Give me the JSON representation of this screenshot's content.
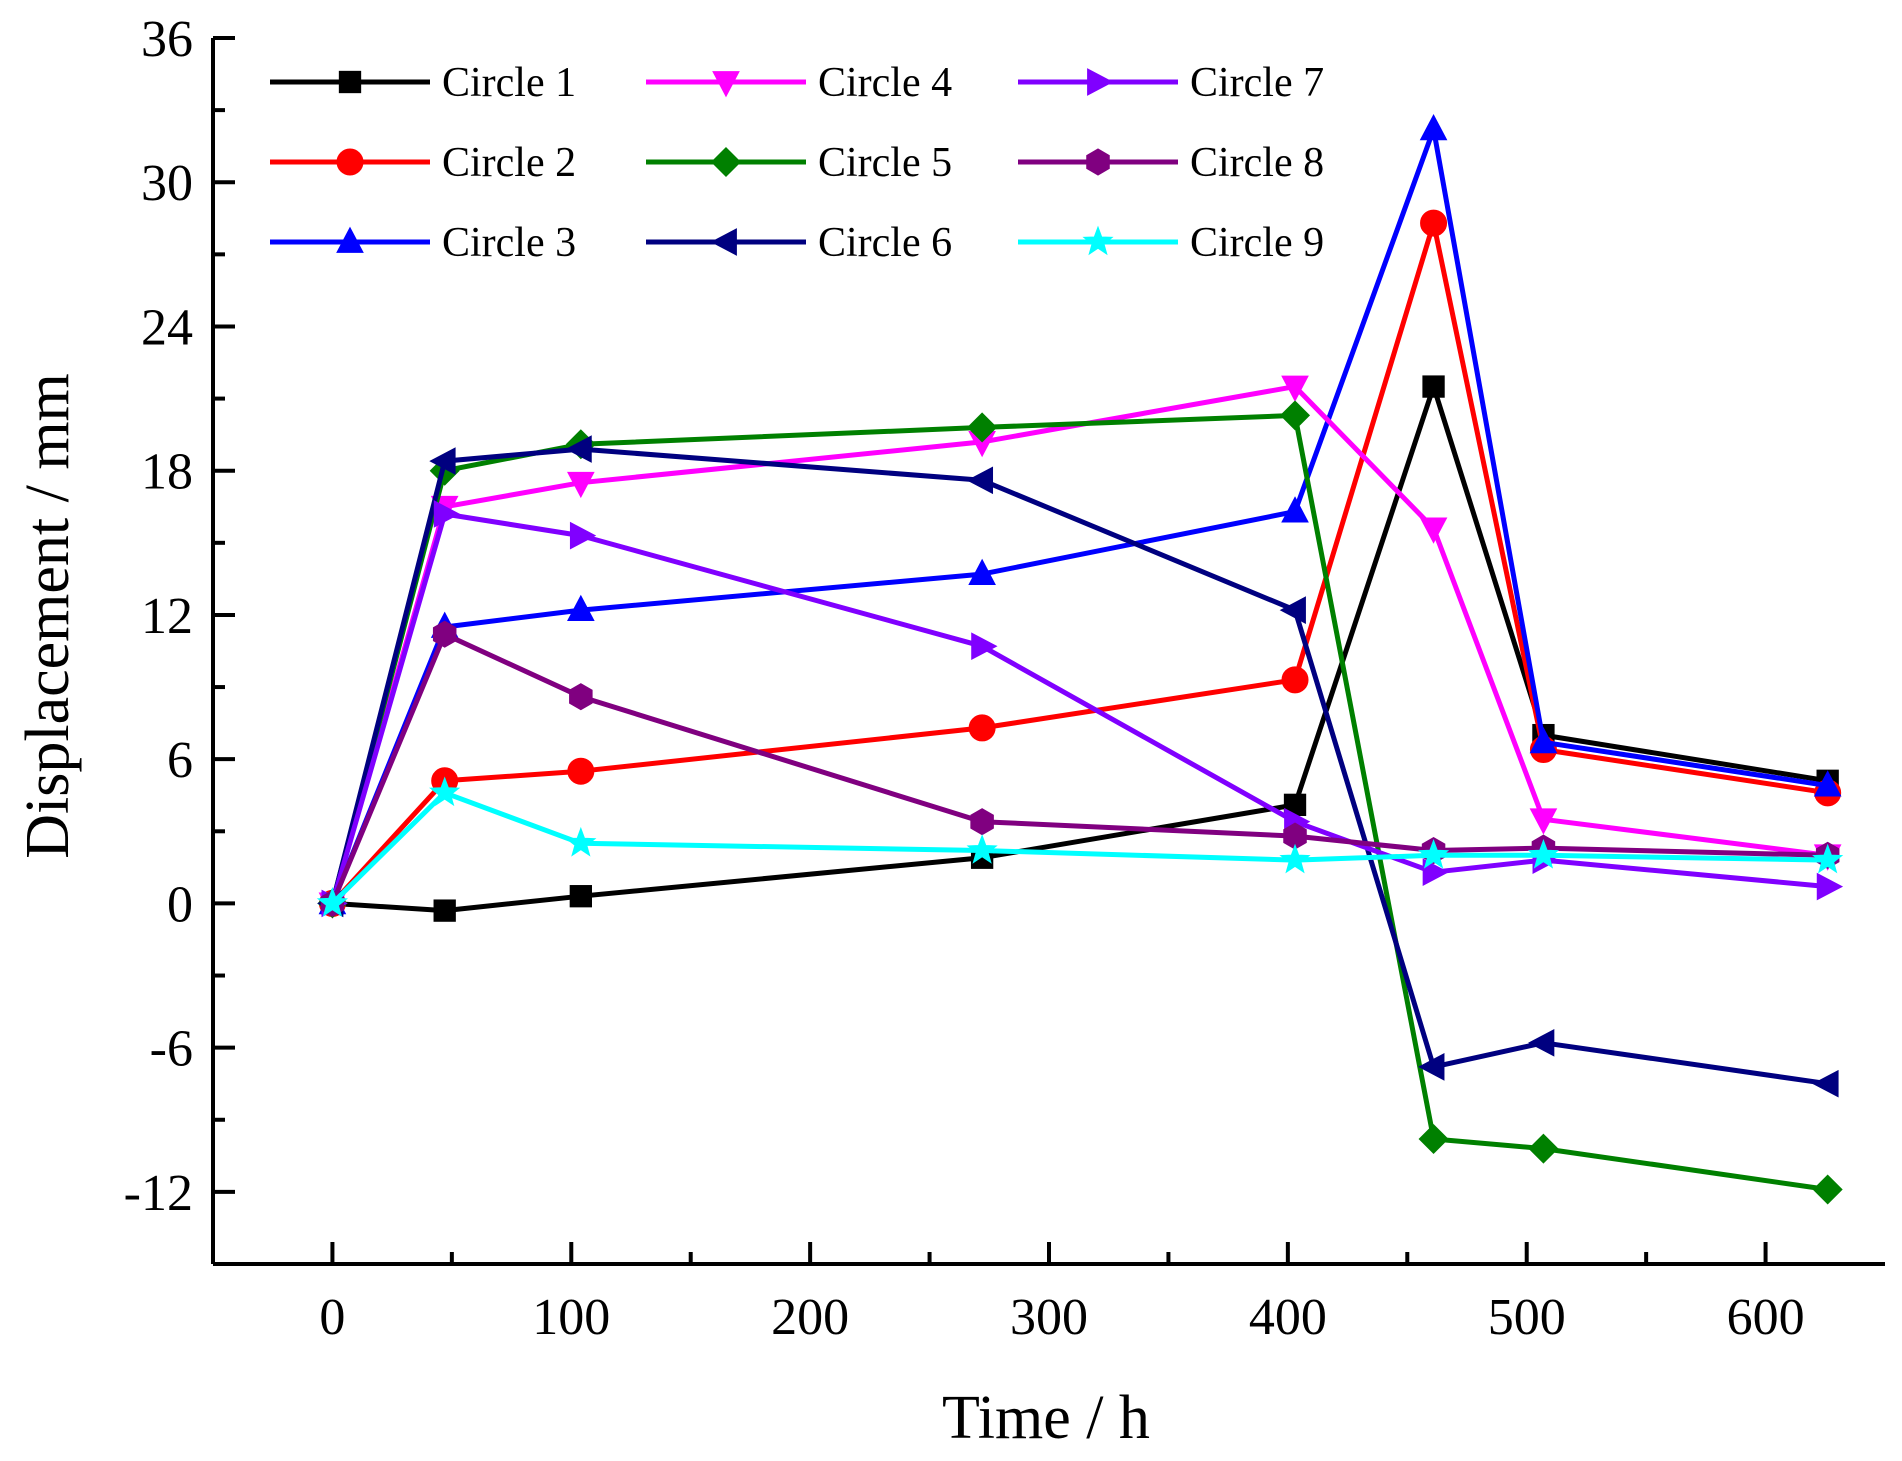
{
  "chart_data": {
    "type": "line",
    "title": "",
    "xlabel": "Time / h",
    "ylabel": "Displacement / mm",
    "xlim": [
      -50,
      650
    ],
    "ylim": [
      -15,
      36
    ],
    "x_ticks": [
      0,
      100,
      200,
      300,
      400,
      500,
      600
    ],
    "x_tick_labels": [
      "0",
      "100",
      "200",
      "300",
      "400",
      "500",
      "600"
    ],
    "y_ticks": [
      -12,
      -6,
      0,
      6,
      12,
      18,
      24,
      30,
      36
    ],
    "y_tick_labels": [
      "-12",
      "-6",
      "0",
      "6",
      "12",
      "18",
      "24",
      "30",
      "36"
    ],
    "grid": false,
    "legend_position": "top-left",
    "x": [
      0,
      47,
      104,
      272,
      403,
      461,
      507,
      626
    ],
    "series": [
      {
        "name": "Circle 1",
        "color": "#000000",
        "marker": "square",
        "values": [
          0,
          -0.3,
          0.3,
          1.9,
          4.1,
          21.5,
          7.0,
          5.1
        ]
      },
      {
        "name": "Circle 2",
        "color": "#ff0000",
        "marker": "circle",
        "values": [
          0,
          5.1,
          5.5,
          7.3,
          9.3,
          28.3,
          6.4,
          4.6
        ]
      },
      {
        "name": "Circle 3",
        "color": "#0000ff",
        "marker": "triangle-up",
        "values": [
          0,
          11.5,
          12.2,
          13.7,
          16.3,
          32.2,
          6.7,
          4.9
        ]
      },
      {
        "name": "Circle 4",
        "color": "#ff00ff",
        "marker": "triangle-down",
        "values": [
          0,
          16.5,
          17.5,
          19.2,
          21.5,
          15.6,
          3.5,
          2.0
        ]
      },
      {
        "name": "Circle 5",
        "color": "#008000",
        "marker": "diamond",
        "values": [
          0,
          18.0,
          19.1,
          19.8,
          20.3,
          -9.8,
          -10.2,
          -11.9
        ]
      },
      {
        "name": "Circle 6",
        "color": "#000080",
        "marker": "triangle-left",
        "values": [
          0,
          18.4,
          18.9,
          17.6,
          12.2,
          -6.8,
          -5.8,
          -7.5
        ]
      },
      {
        "name": "Circle 7",
        "color": "#8000ff",
        "marker": "triangle-right",
        "values": [
          0,
          16.2,
          15.3,
          10.7,
          3.4,
          1.3,
          1.8,
          0.7
        ]
      },
      {
        "name": "Circle 8",
        "color": "#800080",
        "marker": "hexagon",
        "values": [
          0,
          11.2,
          8.6,
          3.4,
          2.8,
          2.2,
          2.3,
          2.0
        ]
      },
      {
        "name": "Circle 9",
        "color": "#00ffff",
        "marker": "star",
        "values": [
          0,
          4.6,
          2.5,
          2.2,
          1.8,
          2.0,
          2.0,
          1.8
        ]
      }
    ]
  }
}
